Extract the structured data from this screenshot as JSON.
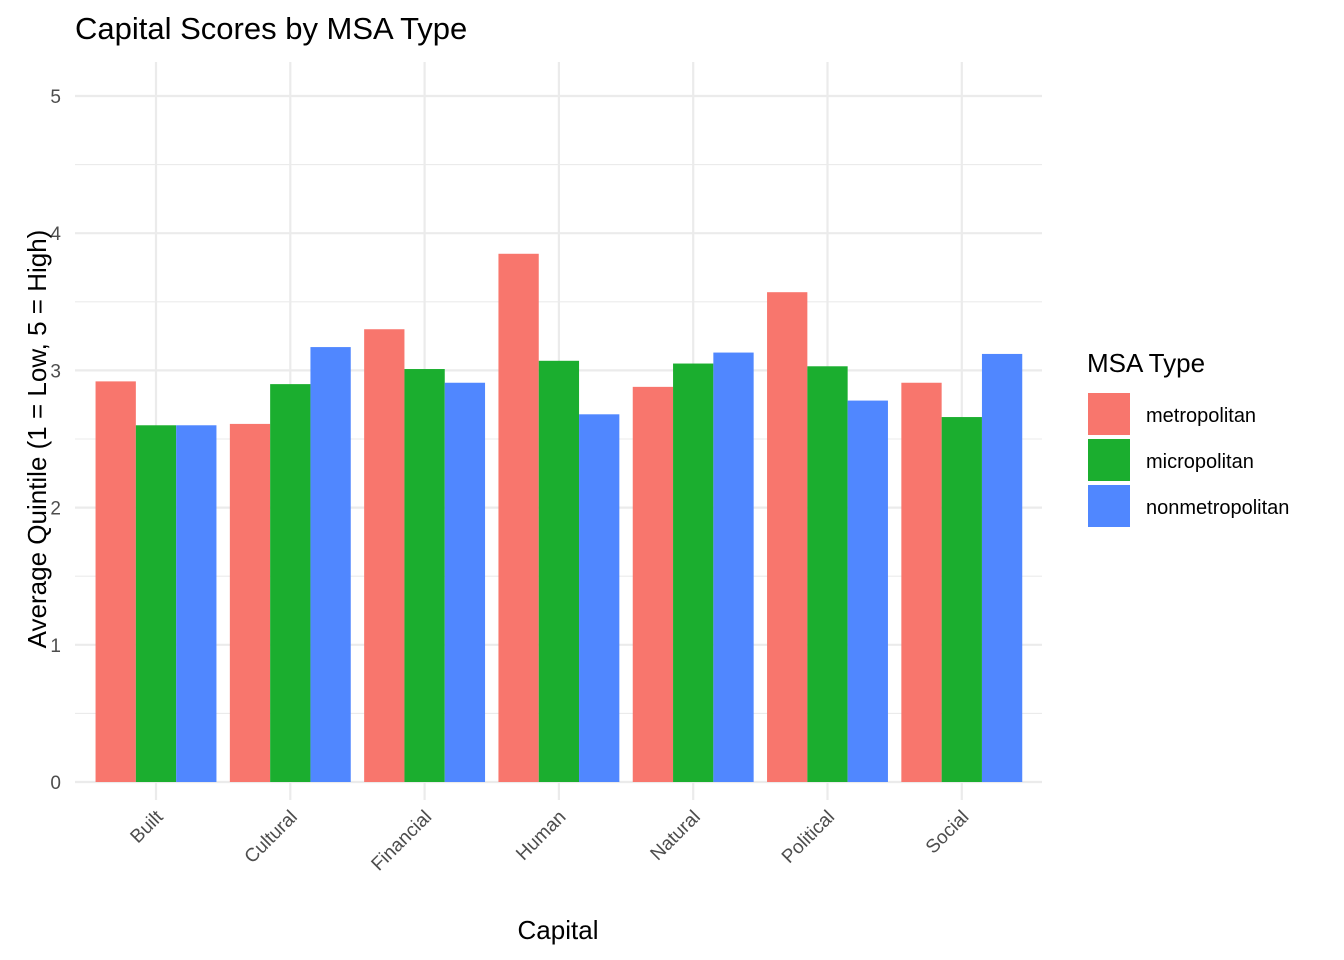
{
  "chart_data": {
    "type": "bar",
    "title": "Capital Scores by MSA Type",
    "xlabel": "Capital",
    "ylabel": "Average Quintile (1 = Low, 5 = High)",
    "categories": [
      "Built",
      "Cultural",
      "Financial",
      "Human",
      "Natural",
      "Political",
      "Social"
    ],
    "series": [
      {
        "name": "metropolitan",
        "color": "#F8766D",
        "values": [
          2.92,
          2.61,
          3.3,
          3.85,
          2.88,
          3.57,
          2.91
        ]
      },
      {
        "name": "micropolitan",
        "color": "#1BAE2F",
        "values": [
          2.6,
          2.9,
          3.01,
          3.07,
          3.05,
          3.03,
          2.66
        ]
      },
      {
        "name": "nonmetropolitan",
        "color": "#5087FF",
        "values": [
          2.6,
          3.17,
          2.91,
          2.68,
          3.13,
          2.78,
          3.12
        ]
      }
    ],
    "ylim": [
      0,
      5
    ],
    "yticks": [
      0,
      1,
      2,
      3,
      4,
      5
    ],
    "grid": true,
    "legend": {
      "title": "MSA Type",
      "position": "right"
    }
  }
}
